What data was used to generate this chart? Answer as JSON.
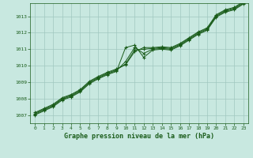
{
  "title": "Graphe pression niveau de la mer (hPa)",
  "background_color": "#c8e8e0",
  "plot_bg_color": "#c8e8e0",
  "line_color": "#1a5c1a",
  "marker_color": "#1a5c1a",
  "grid_color": "#a0c8c0",
  "text_color": "#1a5c1a",
  "xlim": [
    -0.5,
    23.5
  ],
  "ylim": [
    1006.5,
    1013.8
  ],
  "xticks": [
    0,
    1,
    2,
    3,
    4,
    5,
    6,
    7,
    8,
    9,
    10,
    11,
    12,
    13,
    14,
    15,
    16,
    17,
    18,
    19,
    20,
    21,
    22,
    23
  ],
  "yticks": [
    1007,
    1008,
    1009,
    1010,
    1011,
    1012,
    1013
  ],
  "series": [
    [
      1007.0,
      1007.25,
      1007.5,
      1007.9,
      1008.1,
      1008.4,
      1008.9,
      1009.2,
      1009.45,
      1009.65,
      1011.1,
      1011.25,
      1010.5,
      1010.95,
      1011.0,
      1010.95,
      1011.2,
      1011.55,
      1011.9,
      1012.15,
      1012.95,
      1013.25,
      1013.4,
      1013.75
    ],
    [
      1007.05,
      1007.3,
      1007.55,
      1007.95,
      1008.15,
      1008.45,
      1008.95,
      1009.25,
      1009.5,
      1009.7,
      1010.25,
      1011.1,
      1010.75,
      1011.0,
      1011.05,
      1011.0,
      1011.25,
      1011.6,
      1011.95,
      1012.2,
      1013.0,
      1013.3,
      1013.45,
      1013.8
    ],
    [
      1007.1,
      1007.35,
      1007.6,
      1008.0,
      1008.2,
      1008.5,
      1009.0,
      1009.3,
      1009.55,
      1009.75,
      1010.1,
      1010.95,
      1011.0,
      1011.05,
      1011.1,
      1011.05,
      1011.3,
      1011.65,
      1012.0,
      1012.25,
      1013.05,
      1013.35,
      1013.5,
      1013.85
    ],
    [
      1007.15,
      1007.4,
      1007.65,
      1008.05,
      1008.25,
      1008.55,
      1009.05,
      1009.35,
      1009.6,
      1009.8,
      1010.05,
      1010.85,
      1011.1,
      1011.1,
      1011.15,
      1011.1,
      1011.35,
      1011.7,
      1012.05,
      1012.3,
      1013.1,
      1013.4,
      1013.55,
      1013.9
    ]
  ]
}
